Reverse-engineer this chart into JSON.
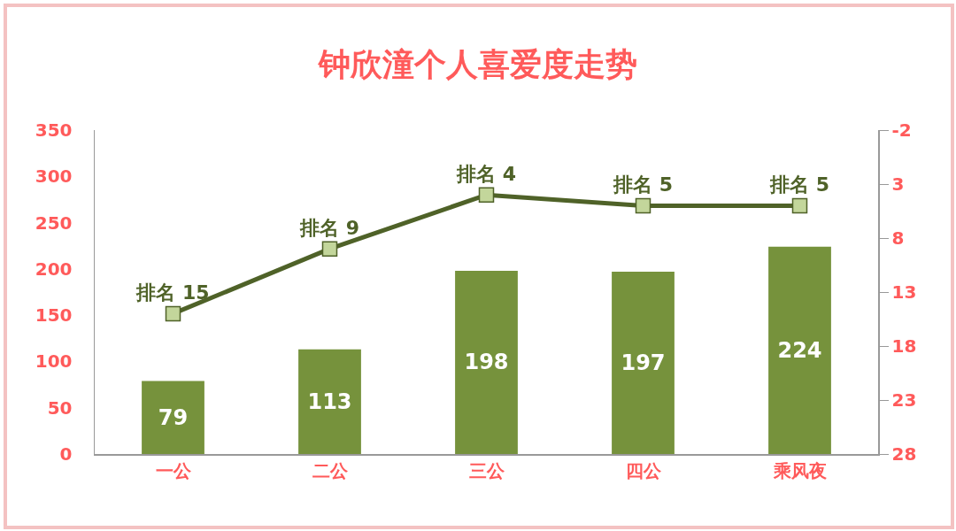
{
  "chart_data": {
    "type": "bar",
    "title": "钟欣潼个人喜爱度走势",
    "categories": [
      "一公",
      "二公",
      "三公",
      "四公",
      "乘风夜"
    ],
    "series": [
      {
        "color": "#76923c",
        "values": [
          79,
          113,
          198,
          197,
          224
        ],
        "value_labels": [
          "79",
          "113",
          "198",
          "197",
          "224"
        ]
      },
      {
        "type": "line",
        "axis": "y2",
        "color": "#4f6228",
        "values": [
          15,
          9,
          4,
          5,
          5
        ],
        "value_labels": [
          "排名 15",
          "排名 9",
          "排名 4",
          "排名 5",
          "排名 5"
        ]
      }
    ],
    "ylim": [
      0,
      350
    ],
    "yticks": [
      0,
      50,
      100,
      150,
      200,
      250,
      300,
      350
    ],
    "y2lim": [
      28,
      -2
    ],
    "y2ticks": [
      -2,
      3,
      8,
      13,
      18,
      23,
      28
    ],
    "marker": "square",
    "line_style": "solid",
    "grid": false,
    "legend": false
  }
}
